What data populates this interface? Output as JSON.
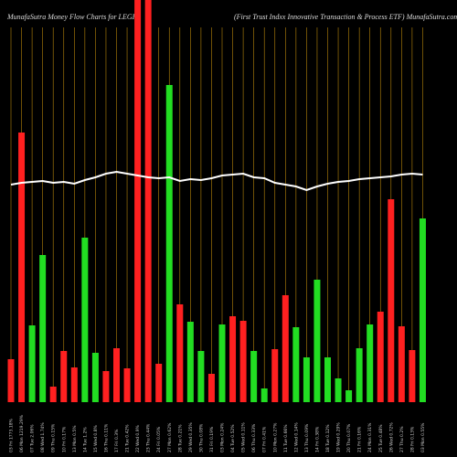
{
  "chart_data": {
    "type": "bar",
    "title": "MunafaSutra  Money Flow  Charts for LEGR",
    "subtitle": "(First Trust Indxx Innovative   Transaction  & Process ETF) MunafaSutra.com",
    "categories": [
      "03 Fri 1773.18%",
      "06 Mon 1219.29%",
      "07 Tue 2.06%",
      "08 Wed 1.74%",
      "09 Thu 0.15%",
      "10 Fri 0.17%",
      "13 Mon 0.5%",
      "14 Tue 1.2%",
      "15 Wed 0.8%",
      "16 Thu 0.11%",
      "17 Fri 0.3%",
      "21 Tue 0.42%",
      "22 Wed 0.9%",
      "23 Thu 0.44%",
      "24 Fri 0.05%",
      "27 Mon 0.62%",
      "28 Tue 0.21%",
      "29 Wed 0.35%",
      "30 Thu 0.08%",
      "31 Fri 0.19%",
      "03 Mon 0.24%",
      "04 Tue 0.52%",
      "05 Wed 0.11%",
      "06 Thu 0.33%",
      "07 Fri 0.41%",
      "10 Mon 0.27%",
      "11 Tue 0.66%",
      "12 Wed 0.14%",
      "13 Thu 0.09%",
      "14 Fri 0.38%",
      "18 Tue 0.12%",
      "19 Wed 0.29%",
      "20 Thu 0.07%",
      "21 Fri 0.16%",
      "24 Mon 0.31%",
      "25 Tue 0.48%",
      "26 Wed 0.72%",
      "27 Thu 0.2%",
      "28 Fri 0.13%",
      "03 Mon 0.55%"
    ],
    "series": [
      {
        "name": "Money Flow",
        "values": [
          47,
          295,
          84,
          161,
          17,
          56,
          38,
          180,
          54,
          34,
          59,
          37,
          500,
          500,
          42,
          347,
          107,
          88,
          56,
          31,
          85,
          94,
          89,
          56,
          15,
          58,
          117,
          82,
          49,
          134,
          49,
          26,
          13,
          59,
          85,
          99,
          222,
          83,
          57,
          201
        ],
        "colors": [
          "#ff2020",
          "#ff2020",
          "#22dd22",
          "#22dd22",
          "#ff2020",
          "#ff2020",
          "#ff2020",
          "#22dd22",
          "#22dd22",
          "#ff2020",
          "#ff2020",
          "#ff2020",
          "#ff2020",
          "#ff2020",
          "#ff2020",
          "#22dd22",
          "#ff2020",
          "#22dd22",
          "#22dd22",
          "#ff2020",
          "#22dd22",
          "#ff2020",
          "#ff2020",
          "#22dd22",
          "#22dd22",
          "#ff2020",
          "#ff2020",
          "#22dd22",
          "#22dd22",
          "#22dd22",
          "#22dd22",
          "#22dd22",
          "#22dd22",
          "#22dd22",
          "#22dd22",
          "#ff2020",
          "#ff2020",
          "#ff2020",
          "#ff2020",
          "#22dd22"
        ]
      },
      {
        "name": "Price",
        "type": "line",
        "color": "#ffffff",
        "values": [
          238,
          240,
          241,
          242,
          240,
          241,
          239,
          243,
          246,
          250,
          252,
          250,
          248,
          246,
          245,
          246,
          242,
          244,
          243,
          245,
          248,
          249,
          250,
          246,
          245,
          240,
          238,
          236,
          232,
          236,
          239,
          241,
          242,
          244,
          245,
          246,
          247,
          249,
          250,
          249
        ]
      }
    ],
    "grid_color": "#b8860b"
  }
}
